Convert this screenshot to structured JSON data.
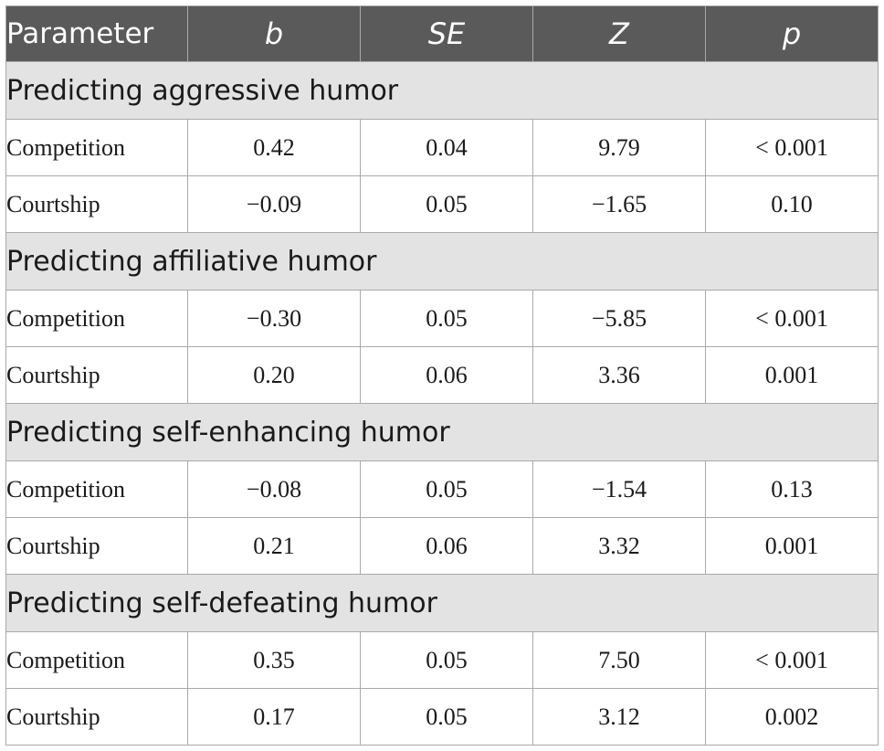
{
  "table": {
    "headers": [
      "Parameter",
      "b",
      "SE",
      "Z",
      "p"
    ],
    "sections": [
      {
        "title": "Predicting aggressive humor",
        "rows": [
          {
            "label": "Competition",
            "b": "0.42",
            "se": "0.04",
            "z": "9.79",
            "p": "< 0.001"
          },
          {
            "label": "Courtship",
            "b": "−0.09",
            "se": "0.05",
            "z": "−1.65",
            "p": "0.10"
          }
        ]
      },
      {
        "title": "Predicting affiliative humor",
        "rows": [
          {
            "label": "Competition",
            "b": "−0.30",
            "se": "0.05",
            "z": "−5.85",
            "p": "< 0.001"
          },
          {
            "label": "Courtship",
            "b": "0.20",
            "se": "0.06",
            "z": "3.36",
            "p": "0.001"
          }
        ]
      },
      {
        "title": "Predicting self-enhancing humor",
        "rows": [
          {
            "label": "Competition",
            "b": "−0.08",
            "se": "0.05",
            "z": "−1.54",
            "p": "0.13"
          },
          {
            "label": "Courtship",
            "b": "0.21",
            "se": "0.06",
            "z": "3.32",
            "p": "0.001"
          }
        ]
      },
      {
        "title": "Predicting self-defeating humor",
        "rows": [
          {
            "label": "Competition",
            "b": "0.35",
            "se": "0.05",
            "z": "7.50",
            "p": "< 0.001"
          },
          {
            "label": "Courtship",
            "b": "0.17",
            "se": "0.05",
            "z": "3.12",
            "p": "0.002"
          }
        ]
      }
    ]
  }
}
